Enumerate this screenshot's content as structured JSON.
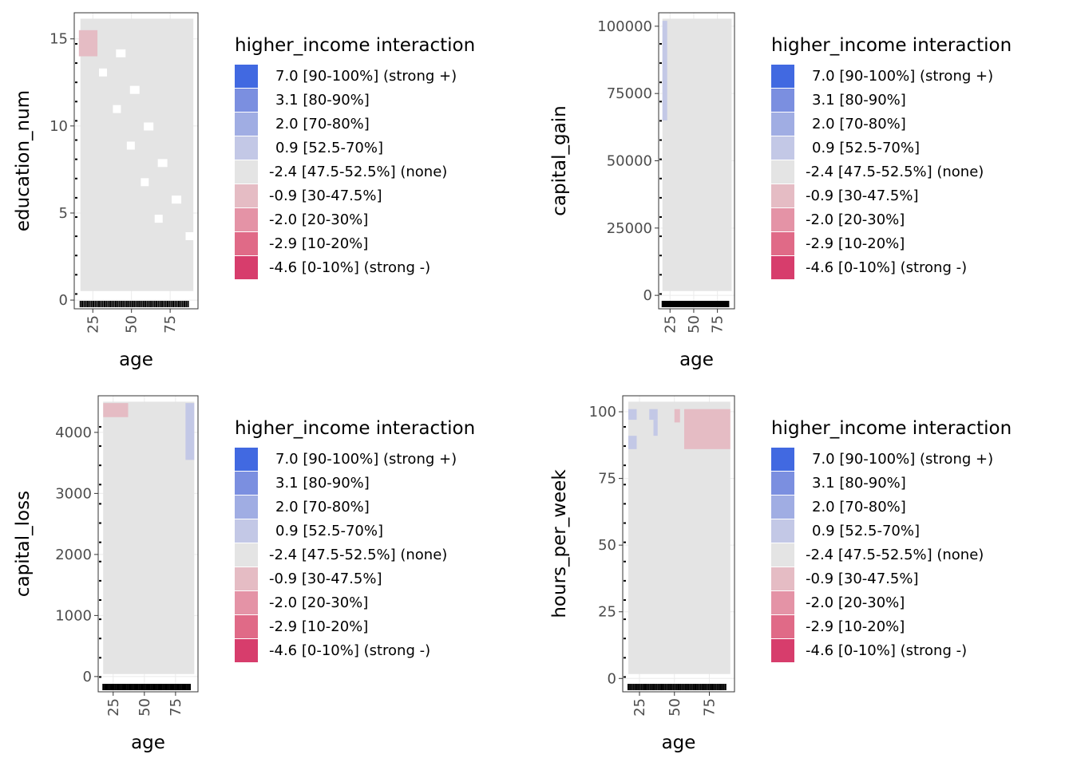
{
  "legend": {
    "title": "higher_income interaction",
    "items": [
      {
        "label": "7.0 [90-100%] (strong +)",
        "color": "#4169e1"
      },
      {
        "label": "3.1 [80-90%]",
        "color": "#7b8fe0"
      },
      {
        "label": "2.0 [70-80%]",
        "color": "#a0ade3"
      },
      {
        "label": "0.9 [52.5-70%]",
        "color": "#c3c8e6"
      },
      {
        "label": "-2.4 [47.5-52.5%] (none)",
        "color": "#e4e4e4"
      },
      {
        "label": "-0.9 [30-47.5%]",
        "color": "#e5bcc4"
      },
      {
        "label": "-2.0 [20-30%]",
        "color": "#e493a6"
      },
      {
        "label": "-2.9 [10-20%]",
        "color": "#e06a87"
      },
      {
        "label": "-4.6 [0-10%] (strong -)",
        "color": "#d73d6c"
      }
    ]
  },
  "chart_data": [
    {
      "type": "heatmap",
      "xlabel": "age",
      "ylabel": "education_num",
      "xlim": [
        13,
        93
      ],
      "ylim": [
        -0.5,
        16.5
      ],
      "xticks": [
        25,
        50,
        75
      ],
      "yticks": [
        0,
        5,
        10,
        15
      ],
      "background_level": "-2.4 [47.5-52.5%] (none)",
      "tiles": [
        {
          "x0": 16,
          "x1": 28,
          "y0": 14,
          "y1": 15.5,
          "level": "-0.9 [30-47.5%]"
        }
      ]
    },
    {
      "type": "heatmap",
      "xlabel": "age",
      "ylabel": "capital_gain",
      "xlim": [
        13,
        93
      ],
      "ylim": [
        -5000,
        105000
      ],
      "xticks": [
        25,
        50,
        75
      ],
      "yticks": [
        0,
        25000,
        50000,
        75000,
        100000
      ],
      "background_level": "-2.4 [47.5-52.5%] (none)",
      "tiles": [
        {
          "x0": 17,
          "x1": 22,
          "y0": 65000,
          "y1": 102000,
          "level": "0.9 [52.5-70%]"
        }
      ]
    },
    {
      "type": "heatmap",
      "xlabel": "age",
      "ylabel": "capital_loss",
      "xlim": [
        13,
        93
      ],
      "ylim": [
        -250,
        4600
      ],
      "xticks": [
        25,
        50,
        75
      ],
      "yticks": [
        0,
        1000,
        2000,
        3000,
        4000
      ],
      "background_level": "-2.4 [47.5-52.5%] (none)",
      "tiles": [
        {
          "x0": 17,
          "x1": 37,
          "y0": 4250,
          "y1": 4480,
          "level": "-0.9 [30-47.5%]"
        },
        {
          "x0": 83,
          "x1": 90,
          "y0": 3550,
          "y1": 4480,
          "level": "0.9 [52.5-70%]"
        }
      ]
    },
    {
      "type": "heatmap",
      "xlabel": "age",
      "ylabel": "hours_per_week",
      "xlim": [
        13,
        93
      ],
      "ylim": [
        -5,
        106
      ],
      "xticks": [
        25,
        50,
        75
      ],
      "yticks": [
        0,
        25,
        50,
        75,
        100
      ],
      "background_level": "-2.4 [47.5-52.5%] (none)",
      "tiles": [
        {
          "x0": 17,
          "x1": 23,
          "y0": 97,
          "y1": 101,
          "level": "0.9 [52.5-70%]"
        },
        {
          "x0": 17,
          "x1": 23,
          "y0": 86,
          "y1": 91,
          "level": "0.9 [52.5-70%]"
        },
        {
          "x0": 32,
          "x1": 38,
          "y0": 97,
          "y1": 101,
          "level": "0.9 [52.5-70%]"
        },
        {
          "x0": 35,
          "x1": 38,
          "y0": 91,
          "y1": 97,
          "level": "0.9 [52.5-70%]"
        },
        {
          "x0": 50,
          "x1": 54,
          "y0": 96,
          "y1": 101,
          "level": "-0.9 [30-47.5%]"
        },
        {
          "x0": 57,
          "x1": 90,
          "y0": 86,
          "y1": 101,
          "level": "-0.9 [30-47.5%]"
        }
      ]
    }
  ]
}
